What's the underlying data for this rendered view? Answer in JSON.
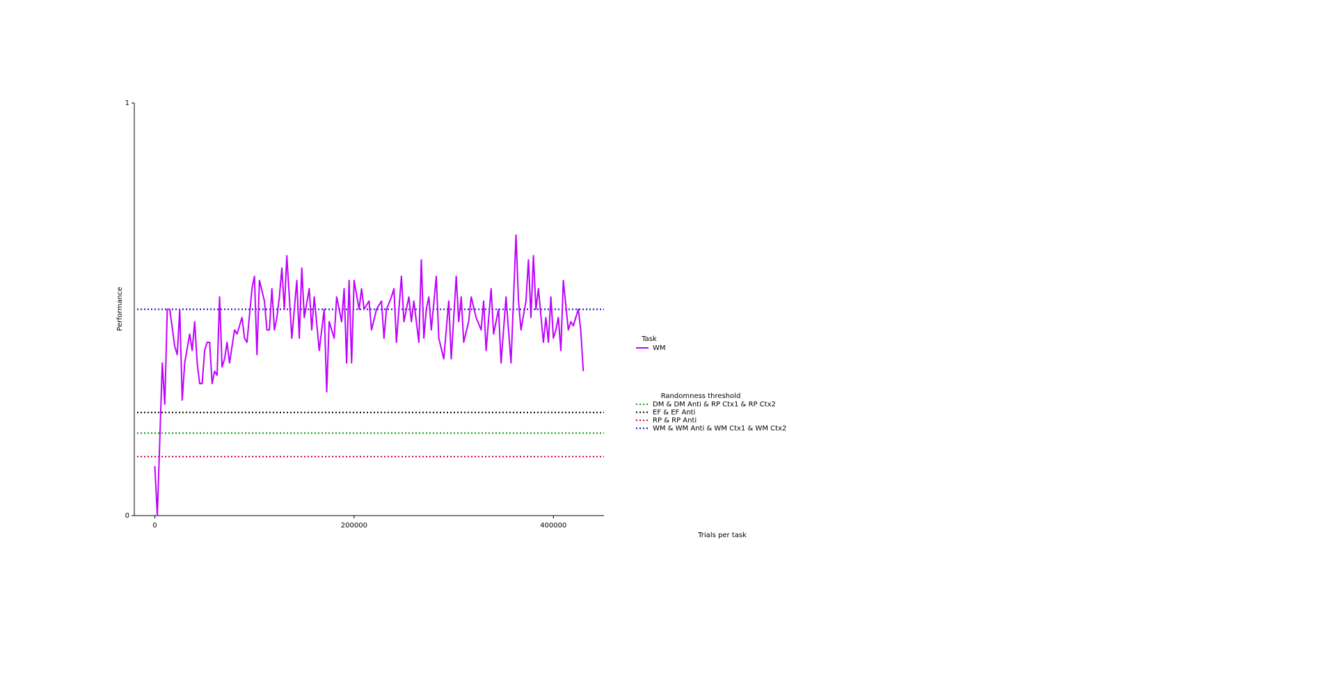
{
  "chart_data": {
    "type": "line",
    "xlabel": "Trials per task",
    "ylabel": "Performance",
    "xlim": [
      -20600,
      450800
    ],
    "ylim": [
      0,
      1
    ],
    "xticks": [
      0,
      200000,
      400000
    ],
    "yticks": [
      0,
      1
    ],
    "legend_title": "Task",
    "series": [
      {
        "name": "WM",
        "color": "#bf00ff",
        "x": [
          0,
          2500,
          7500,
          10000,
          12500,
          15000,
          20000,
          22500,
          25000,
          27500,
          30000,
          35000,
          37500,
          40000,
          42500,
          45000,
          47500,
          50000,
          52500,
          55000,
          57500,
          60000,
          62500,
          65000,
          67500,
          70000,
          72500,
          75000,
          80000,
          82500,
          87500,
          90000,
          92500,
          97500,
          100000,
          102500,
          105000,
          110000,
          112500,
          115000,
          117500,
          120000,
          122500,
          125000,
          127500,
          130000,
          132500,
          137500,
          142500,
          145000,
          147500,
          150000,
          155000,
          157500,
          160000,
          165000,
          170000,
          172500,
          175000,
          180000,
          182500,
          187500,
          190000,
          192500,
          195000,
          197500,
          200000,
          205000,
          207500,
          210000,
          215000,
          217500,
          222500,
          227500,
          230000,
          232500,
          237500,
          240000,
          242500,
          247500,
          250000,
          255000,
          257500,
          260000,
          265000,
          267500,
          270000,
          272500,
          275000,
          277500,
          282500,
          285000,
          290000,
          295000,
          297500,
          302500,
          305000,
          307500,
          310000,
          315000,
          317500,
          322500,
          327500,
          330000,
          332500,
          337500,
          340000,
          345000,
          347500,
          352500,
          357500,
          362500,
          365000,
          367500,
          372500,
          375000,
          377500,
          380000,
          382500,
          385000,
          390000,
          392500,
          395000,
          397500,
          400000,
          402500,
          405000,
          407500,
          410000,
          415000,
          417500,
          420000,
          425000,
          427500,
          430000
        ],
        "values": [
          0.12,
          0.0,
          0.37,
          0.27,
          0.5,
          0.5,
          0.41,
          0.39,
          0.5,
          0.28,
          0.37,
          0.44,
          0.4,
          0.47,
          0.37,
          0.32,
          0.32,
          0.4,
          0.42,
          0.42,
          0.32,
          0.35,
          0.34,
          0.53,
          0.36,
          0.38,
          0.42,
          0.37,
          0.45,
          0.44,
          0.48,
          0.43,
          0.42,
          0.55,
          0.58,
          0.39,
          0.57,
          0.52,
          0.45,
          0.45,
          0.55,
          0.45,
          0.48,
          0.53,
          0.6,
          0.5,
          0.63,
          0.43,
          0.57,
          0.43,
          0.6,
          0.48,
          0.55,
          0.45,
          0.53,
          0.4,
          0.5,
          0.3,
          0.47,
          0.43,
          0.53,
          0.47,
          0.55,
          0.37,
          0.57,
          0.37,
          0.57,
          0.5,
          0.55,
          0.5,
          0.52,
          0.45,
          0.5,
          0.52,
          0.43,
          0.5,
          0.53,
          0.55,
          0.42,
          0.58,
          0.47,
          0.53,
          0.47,
          0.52,
          0.42,
          0.62,
          0.43,
          0.5,
          0.53,
          0.45,
          0.58,
          0.43,
          0.38,
          0.52,
          0.38,
          0.58,
          0.47,
          0.53,
          0.42,
          0.47,
          0.53,
          0.48,
          0.45,
          0.52,
          0.4,
          0.55,
          0.44,
          0.5,
          0.37,
          0.53,
          0.37,
          0.68,
          0.52,
          0.45,
          0.52,
          0.62,
          0.48,
          0.63,
          0.5,
          0.55,
          0.42,
          0.48,
          0.42,
          0.53,
          0.43,
          0.45,
          0.48,
          0.4,
          0.57,
          0.45,
          0.47,
          0.46,
          0.5,
          0.45,
          0.35
        ]
      }
    ],
    "thresholds_title": "Randomness threshold",
    "thresholds": [
      {
        "name": "DM & DM Anti & RP Ctx1 & RP Ctx2",
        "color": "#009900",
        "value": 0.2
      },
      {
        "name": "EF & EF Anti",
        "color": "#000000",
        "value": 0.25
      },
      {
        "name": "RP & RP Anti",
        "color": "#cc0033",
        "value": 0.143
      },
      {
        "name": "WM & WM Anti & WM Ctx1 & WM Ctx2",
        "color": "#0000cd",
        "value": 0.5
      }
    ]
  }
}
